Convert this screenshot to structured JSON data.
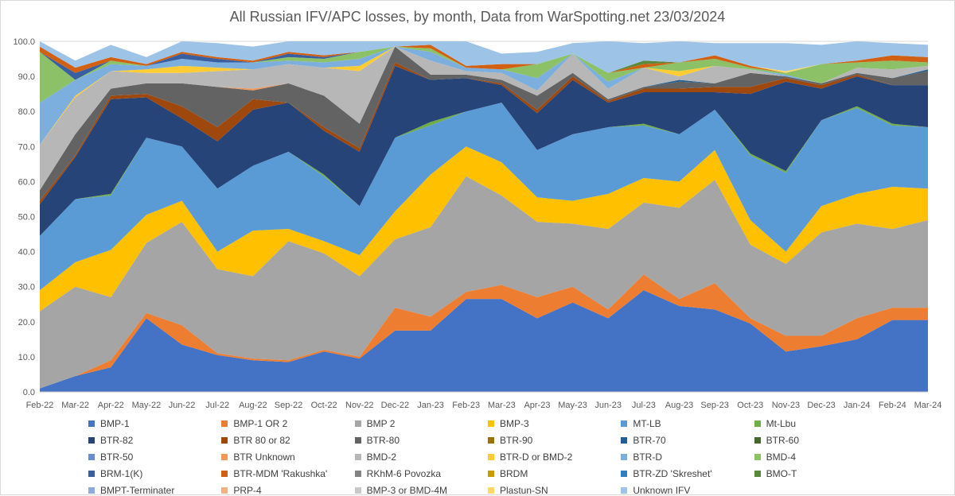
{
  "chart_data": {
    "type": "area",
    "title": "All Russian IFV/APC losses, by month, Data from WarSpotting.net 23/03/2024",
    "ylim": [
      0,
      100
    ],
    "yticks": [
      "0.0",
      "10.0",
      "20.0",
      "30.0",
      "40.0",
      "50.0",
      "60.0",
      "70.0",
      "80.0",
      "90.0",
      "100.0"
    ],
    "grid": true,
    "legend_position": "bottom",
    "categories": [
      "Feb-22",
      "Mar-22",
      "Apr-22",
      "May-22",
      "Jun-22",
      "Jul-22",
      "Aug-22",
      "Sep-22",
      "Oct-22",
      "Nov-22",
      "Dec-22",
      "Jan-23",
      "Feb-23",
      "Mar-23",
      "Apr-23",
      "May-23",
      "Jun-23",
      "Jul-23",
      "Aug-23",
      "Sep-23",
      "Oct-23",
      "Nov-23",
      "Dec-23",
      "Jan-24",
      "Feb-24",
      "Mar-24"
    ],
    "series": [
      {
        "name": "BMP-1",
        "color": "#4472c4",
        "values": [
          1,
          4.5,
          7,
          21,
          13.5,
          10.5,
          9,
          8.5,
          11.5,
          9.5,
          17.5,
          17.5,
          26.5,
          26.5,
          21,
          25.5,
          21,
          29,
          24.5,
          23.5,
          19.5,
          11.5,
          13,
          15,
          20.5,
          20.5
        ]
      },
      {
        "name": "BMP-1 OR 2",
        "color": "#ed7d31",
        "values": [
          0,
          0,
          2,
          1.5,
          5.5,
          0.5,
          0.5,
          0.5,
          0.5,
          0.5,
          6.5,
          4,
          2,
          4,
          6,
          4.5,
          2.5,
          4.5,
          2,
          7.5,
          1.5,
          4.5,
          3,
          6,
          3.5,
          3.5
        ]
      },
      {
        "name": "BMP 2",
        "color": "#a5a5a5",
        "values": [
          22,
          25.5,
          18,
          20,
          29.5,
          24,
          23.5,
          34,
          27.5,
          23,
          19.5,
          25.5,
          33,
          25.5,
          21.5,
          18,
          23,
          20.5,
          26,
          29.5,
          21,
          20.5,
          29.5,
          27,
          22.5,
          25
        ]
      },
      {
        "name": "BMP-3",
        "color": "#ffc000",
        "values": [
          6,
          7,
          13.5,
          8,
          6,
          5,
          13,
          3.5,
          3.5,
          6,
          8,
          15,
          8.5,
          9.5,
          7,
          6.5,
          10,
          7,
          7.5,
          8.5,
          7,
          3.5,
          7.5,
          8.5,
          12,
          9
        ]
      },
      {
        "name": "MT-LB",
        "color": "#5b9bd5",
        "values": [
          15.5,
          18,
          15.5,
          22,
          15.5,
          18,
          18.5,
          22,
          18.5,
          14,
          21,
          14,
          10,
          17,
          13.5,
          19,
          19,
          15,
          13.5,
          11.5,
          18.5,
          22.5,
          24.5,
          24.5,
          17.5,
          17.5
        ]
      },
      {
        "name": "Mt-Lbu",
        "color": "#70ad47",
        "values": [
          0,
          0,
          0.5,
          0,
          0,
          0,
          0,
          0,
          0.5,
          0,
          0,
          1,
          0,
          0,
          0,
          0,
          0,
          0.5,
          0,
          0,
          0.5,
          0.5,
          0,
          0.5,
          0.5,
          0
        ]
      },
      {
        "name": "BTR-82",
        "color": "#264478",
        "values": [
          9,
          12,
          27,
          11.5,
          8,
          13.5,
          16,
          14,
          12.5,
          15.5,
          20.5,
          12,
          9.5,
          5,
          10.5,
          15.5,
          7,
          9,
          12,
          5,
          17,
          25.5,
          9,
          8.5,
          11,
          12
        ]
      },
      {
        "name": "BTR 80 or 82",
        "color": "#9e480e",
        "values": [
          1,
          0.5,
          1,
          1,
          3.5,
          4,
          3,
          0,
          1,
          1,
          1,
          0,
          0,
          0.5,
          1,
          1,
          0.5,
          1,
          1,
          1.5,
          2,
          1,
          1,
          0.5,
          0,
          0
        ]
      },
      {
        "name": "BTR-80",
        "color": "#636363",
        "values": [
          3,
          6,
          2,
          3,
          6.5,
          11.5,
          2.5,
          5.5,
          9,
          7,
          4.5,
          1.5,
          1,
          1,
          4,
          1,
          0.5,
          0.5,
          2,
          1,
          4,
          0.5,
          0.5,
          0.5,
          2,
          4
        ]
      },
      {
        "name": "BTR-90",
        "color": "#997300",
        "values": [
          0,
          0,
          0,
          0,
          0,
          0,
          0,
          0,
          0,
          0,
          0,
          0,
          0,
          0,
          0,
          0,
          0,
          0,
          0,
          0,
          0,
          0,
          0,
          0,
          0,
          0
        ]
      },
      {
        "name": "BTR-70",
        "color": "#255e91",
        "values": [
          0,
          0,
          0,
          0,
          0,
          0,
          0,
          0,
          0,
          0,
          0,
          0,
          0,
          0,
          0,
          0,
          0,
          0,
          0.5,
          0,
          0,
          0,
          0,
          0,
          0,
          0.5
        ]
      },
      {
        "name": "BTR-60",
        "color": "#43682b",
        "values": [
          0,
          0,
          0,
          0,
          0,
          0,
          0,
          0,
          0,
          0,
          0,
          0,
          0,
          0,
          0,
          0,
          0,
          0,
          0,
          0,
          0,
          0,
          0,
          0,
          0,
          0
        ]
      },
      {
        "name": "BTR-50",
        "color": "#698ed0",
        "values": [
          0,
          0,
          0,
          0,
          0,
          0,
          0,
          0,
          0,
          0,
          0,
          0,
          0,
          0,
          0,
          0,
          0,
          0,
          0,
          0,
          0,
          0,
          0,
          0,
          0,
          0
        ]
      },
      {
        "name": "BTR Unknown",
        "color": "#f1975a",
        "values": [
          0,
          0,
          0,
          0,
          0,
          0,
          0.5,
          0,
          0,
          0,
          0,
          0,
          0,
          0,
          0,
          0,
          0,
          0,
          0,
          0,
          0,
          0,
          0,
          0,
          0,
          0
        ]
      },
      {
        "name": "BMD-2",
        "color": "#b7b7b7",
        "values": [
          13,
          10.5,
          5,
          3,
          3,
          4.5,
          5.5,
          5.5,
          8,
          15,
          0,
          4,
          1,
          2,
          1.5,
          5.5,
          3,
          5.5,
          1,
          5,
          1,
          0,
          0,
          1.5,
          2.5,
          1
        ]
      },
      {
        "name": "BTR-D or BMD-2",
        "color": "#ffcd33",
        "values": [
          0,
          0.5,
          0,
          1,
          2,
          1,
          0,
          0,
          0,
          1.5,
          0,
          0,
          0,
          0,
          0,
          0,
          0,
          0,
          1.5,
          0,
          0,
          0,
          0,
          0,
          0,
          0
        ]
      },
      {
        "name": "BTR-D",
        "color": "#7cafdd",
        "values": [
          12,
          4.5,
          2,
          1,
          2,
          1.5,
          2,
          1,
          1.5,
          2,
          0,
          2.5,
          1,
          1,
          3.5,
          0,
          2,
          0,
          0,
          0,
          0,
          0.5,
          0,
          0,
          0,
          0
        ]
      },
      {
        "name": "BMD-4",
        "color": "#8cc168",
        "values": [
          14.5,
          0,
          1,
          0,
          0,
          0,
          0,
          1,
          1,
          2,
          0,
          1,
          0,
          0,
          4,
          0,
          2.5,
          0,
          2.5,
          2,
          0.5,
          0.5,
          5.5,
          1.5,
          2.5,
          1
        ]
      },
      {
        "name": "BRM-1(K)",
        "color": "#3a5fa0",
        "values": [
          0,
          2,
          0,
          0,
          1.5,
          1,
          0,
          1,
          0.5,
          0,
          0,
          0,
          0,
          0,
          0,
          0,
          0,
          0,
          0,
          0,
          0,
          0,
          0,
          0,
          0,
          0
        ]
      },
      {
        "name": "BTR-MDM 'Rakushka'",
        "color": "#d26012",
        "values": [
          1.5,
          1.5,
          1,
          0.5,
          0.5,
          0.5,
          0.5,
          0.5,
          0.5,
          0,
          0,
          1,
          0.5,
          1.5,
          0,
          0,
          0,
          1,
          0,
          1,
          0.5,
          0,
          0,
          0.5,
          1.5,
          1.5
        ]
      },
      {
        "name": "RKhM-6 Povozka",
        "color": "#848484",
        "values": [
          0,
          0,
          0,
          0,
          0,
          0,
          0,
          0,
          0,
          0,
          0,
          0,
          0,
          0,
          0,
          0,
          0,
          0,
          0,
          0,
          0,
          0,
          0,
          0,
          0,
          0
        ]
      },
      {
        "name": "BRDM",
        "color": "#cc9a00",
        "values": [
          0,
          0,
          0,
          0,
          0,
          0,
          0,
          0,
          0,
          0,
          0,
          0,
          0,
          0,
          0,
          0,
          0,
          0,
          0,
          0,
          0,
          0,
          0,
          0,
          0,
          0
        ]
      },
      {
        "name": "BTR-ZD 'Skreshet'",
        "color": "#327dc2",
        "values": [
          0,
          0,
          0,
          0,
          0,
          0,
          0,
          0,
          0,
          0,
          0,
          0,
          0,
          0,
          0,
          0,
          0,
          0,
          0,
          0,
          0,
          0,
          0,
          0,
          0,
          0
        ]
      },
      {
        "name": "BMO-T",
        "color": "#5a8a39",
        "values": [
          0,
          0,
          0,
          0,
          0,
          0,
          0,
          0,
          0,
          0,
          0,
          0,
          0,
          0,
          0,
          0,
          0,
          1,
          0,
          0,
          0,
          0,
          0,
          0,
          0,
          0
        ]
      },
      {
        "name": "BMPT-Terminater",
        "color": "#8faadc",
        "values": [
          0,
          0,
          0,
          0,
          0,
          0,
          0,
          0,
          0,
          0,
          0,
          0,
          0,
          0,
          0,
          0,
          0,
          0,
          0,
          0,
          0,
          0,
          0,
          0,
          0,
          0
        ]
      },
      {
        "name": "PRP-4",
        "color": "#f4b183",
        "values": [
          0,
          0,
          0,
          0,
          0,
          0,
          0,
          0,
          0,
          0,
          0,
          0,
          0,
          0,
          0,
          0,
          0,
          0,
          0,
          0,
          0,
          0,
          0,
          0,
          0,
          0
        ]
      },
      {
        "name": "BMP-3 or BMD-4M",
        "color": "#c9c9c9",
        "values": [
          0,
          0,
          0,
          0,
          0,
          0,
          0,
          0,
          0,
          0,
          0,
          0,
          0,
          0,
          0,
          0,
          0,
          0,
          0,
          0,
          0,
          0,
          0,
          0,
          0,
          0
        ]
      },
      {
        "name": "Plastun-SN",
        "color": "#ffd966",
        "values": [
          0,
          0,
          0,
          0,
          0,
          0,
          0,
          0,
          0,
          0,
          0,
          0,
          0,
          0,
          0,
          0,
          0,
          0,
          0,
          0,
          0,
          0.5,
          0,
          0,
          0,
          0
        ]
      },
      {
        "name": "Unknown IFV",
        "color": "#9dc3e6",
        "values": [
          1.5,
          2,
          3.5,
          2,
          3,
          4,
          4,
          3,
          4,
          3,
          1.5,
          1,
          7,
          3,
          3.5,
          3,
          9,
          5,
          6,
          3.5,
          6.5,
          8,
          5.5,
          5.5,
          3.5,
          3.5
        ]
      }
    ]
  }
}
